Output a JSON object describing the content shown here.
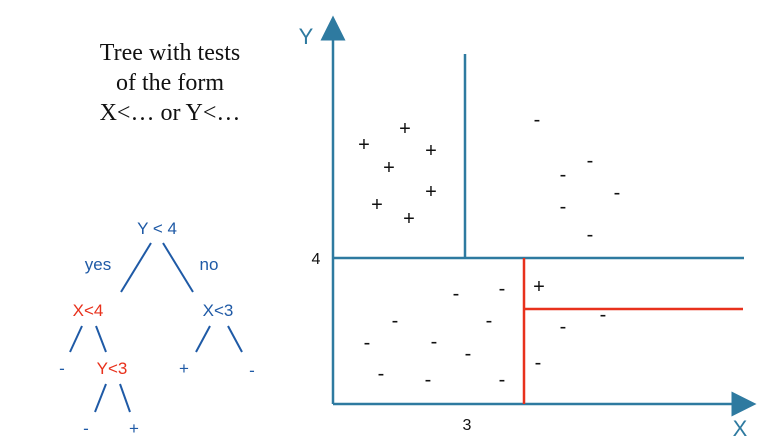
{
  "caption": {
    "lines": [
      "Tree with tests",
      "of the form",
      "X<… or Y<…"
    ]
  },
  "tree": {
    "root": "Y < 4",
    "yes_label": "yes",
    "no_label": "no",
    "left_test": "X<4",
    "right_test": "X<3",
    "left_left_leaf": "-",
    "left_sub_test": "Y<3",
    "left_sub_left_leaf": "-",
    "left_sub_right_leaf": "+",
    "right_left_leaf": "+",
    "right_right_leaf": "-"
  },
  "plot": {
    "y_axis_label": "Y",
    "x_axis_label": "X",
    "y_tick": "4",
    "x_tick": "3"
  },
  "colors": {
    "tree_text": "#1f5aa6",
    "highlight": "#e8311c",
    "axis": "#2e7aa0",
    "ink": "#111111"
  }
}
